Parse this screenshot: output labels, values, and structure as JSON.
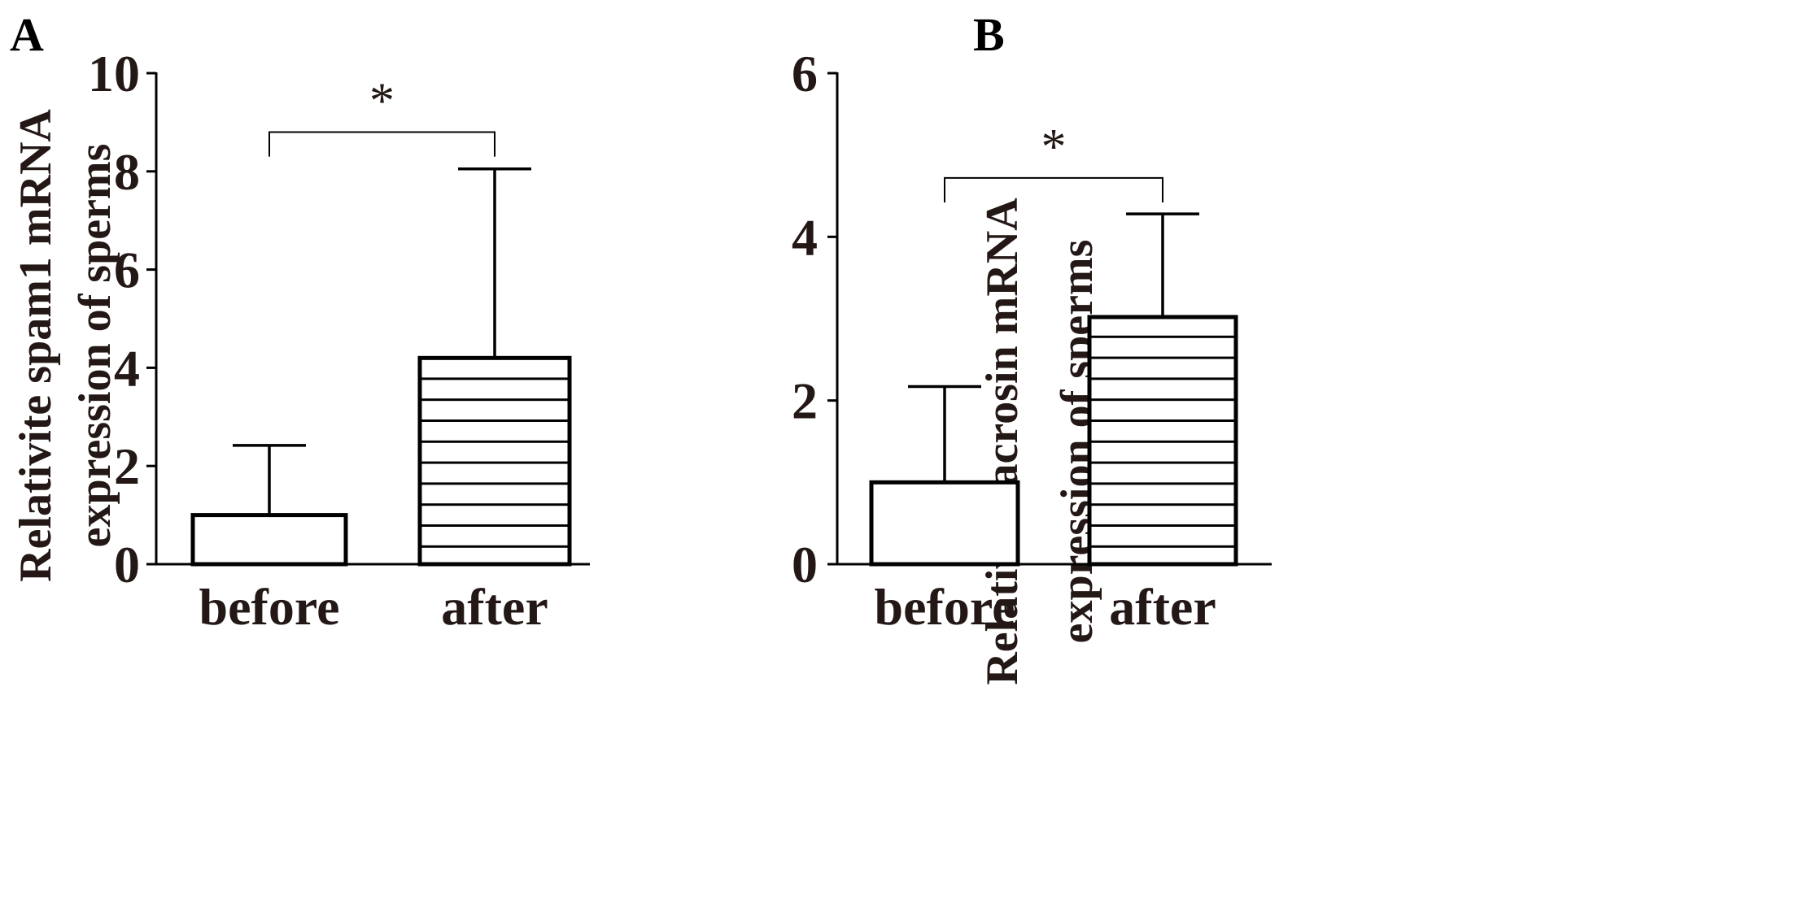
{
  "chart_data": [
    {
      "type": "bar",
      "panel": "A",
      "categories": [
        "before",
        "after"
      ],
      "values": [
        1.0,
        4.2
      ],
      "error_upper": [
        2.42,
        8.05
      ],
      "ylabel_line1": "Relativite spam1 mRNA",
      "ylabel_line2": "expression of  sperms",
      "ylim": [
        0,
        10
      ],
      "yticks": [
        0,
        2,
        4,
        6,
        8,
        10
      ],
      "significance": "*",
      "bracket_y": 8.8,
      "bracket_drop": 8.3,
      "bar_fills": [
        "plain",
        "horizontal-stripes"
      ],
      "grid": false
    },
    {
      "type": "bar",
      "panel": "B",
      "categories": [
        "before",
        "after"
      ],
      "values": [
        1.0,
        3.02
      ],
      "error_upper": [
        2.17,
        4.28
      ],
      "ylabel_line1": "Relativite acrosin mRNA",
      "ylabel_line2": "expression of  sperms",
      "ylim": [
        0,
        6
      ],
      "yticks": [
        0,
        2,
        4,
        6
      ],
      "significance": "*",
      "bracket_y": 4.72,
      "bracket_drop": 4.42,
      "bar_fills": [
        "plain",
        "horizontal-stripes"
      ],
      "grid": false
    }
  ],
  "colors": {
    "ink": "#000000",
    "text": "#231815",
    "background": "#ffffff"
  }
}
